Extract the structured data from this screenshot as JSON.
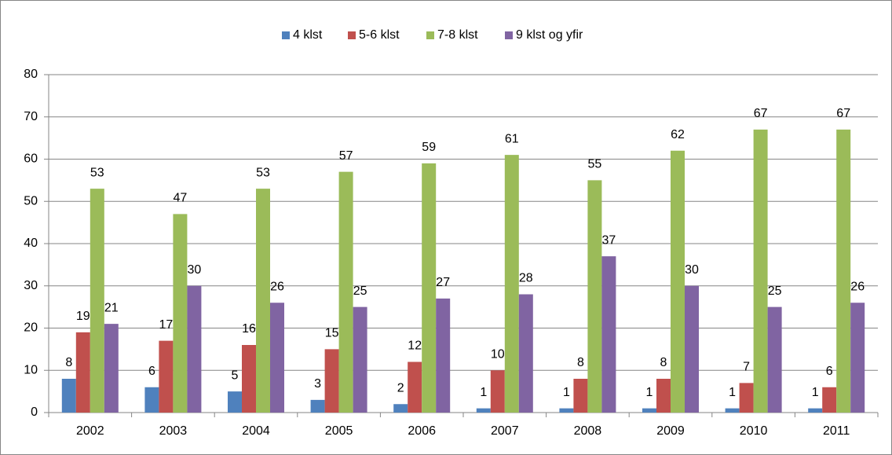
{
  "chart_data": {
    "type": "bar",
    "categories": [
      "2002",
      "2003",
      "2004",
      "2005",
      "2006",
      "2007",
      "2008",
      "2009",
      "2010",
      "2011"
    ],
    "series": [
      {
        "name": "4 klst",
        "color": "#4f81bd",
        "values": [
          8,
          6,
          5,
          3,
          2,
          1,
          1,
          1,
          1,
          1
        ]
      },
      {
        "name": "5-6 klst",
        "color": "#c0504d",
        "values": [
          19,
          17,
          16,
          15,
          12,
          10,
          8,
          8,
          7,
          6
        ]
      },
      {
        "name": "7-8 klst",
        "color": "#9bbb59",
        "values": [
          53,
          47,
          53,
          57,
          59,
          61,
          55,
          62,
          67,
          67
        ]
      },
      {
        "name": "9 klst og yfir",
        "color": "#8064a2",
        "values": [
          21,
          30,
          26,
          25,
          27,
          28,
          37,
          30,
          25,
          26
        ]
      }
    ],
    "ylim": [
      0,
      80
    ],
    "yticks": [
      0,
      10,
      20,
      30,
      40,
      50,
      60,
      70,
      80
    ],
    "grid": true,
    "legend": "top"
  }
}
